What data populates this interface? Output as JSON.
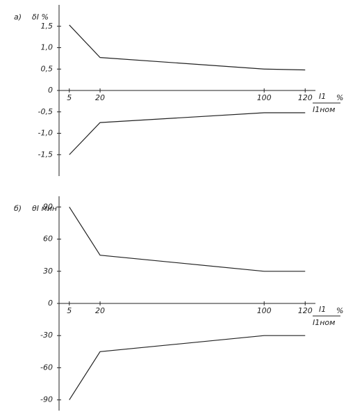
{
  "chart_data": [
    {
      "type": "line",
      "panel_label": "a)",
      "y_label": "δI %",
      "x_label": {
        "numerator": "I1",
        "denominator": "I1ном",
        "unit": "%"
      },
      "x": [
        5,
        20,
        100,
        120
      ],
      "xlim": [
        0,
        125
      ],
      "xticks": [
        5,
        20,
        100,
        120
      ],
      "ylim": [
        -2,
        2
      ],
      "yticks": [
        {
          "value": 1.5,
          "label": "1,5"
        },
        {
          "value": 1.0,
          "label": "1,0"
        },
        {
          "value": 0.5,
          "label": "0,5"
        },
        0,
        {
          "value": -0.5,
          "label": "-0,5"
        },
        {
          "value": -1.0,
          "label": "-1,0"
        },
        {
          "value": -1.5,
          "label": "-1,5"
        }
      ],
      "series": [
        {
          "color": "#222222",
          "values": [
            1.53,
            0.77,
            0.5,
            0.48
          ]
        },
        {
          "color": "#222222",
          "values": [
            -1.5,
            -0.75,
            -0.52,
            -0.52
          ]
        }
      ]
    },
    {
      "type": "line",
      "panel_label": "б)",
      "y_label": "θI мин",
      "x_label": {
        "numerator": "I1",
        "denominator": "I1ном",
        "unit": "%"
      },
      "x": [
        5,
        20,
        100,
        120
      ],
      "xlim": [
        0,
        125
      ],
      "xticks": [
        5,
        20,
        100,
        120
      ],
      "ylim": [
        -100,
        100
      ],
      "yticks": [
        90,
        60,
        30,
        0,
        -30,
        -60,
        -90
      ],
      "series": [
        {
          "color": "#222222",
          "values": [
            90,
            45,
            30,
            30
          ]
        },
        {
          "color": "#222222",
          "values": [
            -90,
            -45,
            -30,
            -30
          ]
        }
      ]
    }
  ]
}
